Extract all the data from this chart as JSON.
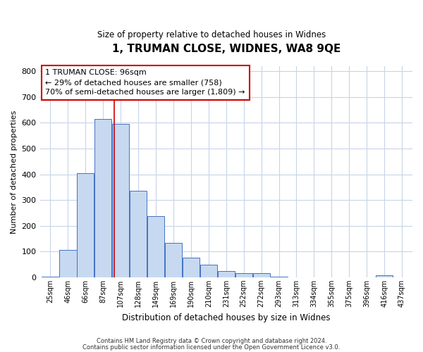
{
  "title": "1, TRUMAN CLOSE, WIDNES, WA8 9QE",
  "subtitle": "Size of property relative to detached houses in Widnes",
  "xlabel": "Distribution of detached houses by size in Widnes",
  "ylabel": "Number of detached properties",
  "bar_labels": [
    "25sqm",
    "46sqm",
    "66sqm",
    "87sqm",
    "107sqm",
    "128sqm",
    "149sqm",
    "169sqm",
    "190sqm",
    "210sqm",
    "231sqm",
    "252sqm",
    "272sqm",
    "293sqm",
    "313sqm",
    "334sqm",
    "355sqm",
    "375sqm",
    "396sqm",
    "416sqm",
    "437sqm"
  ],
  "bar_values": [
    2,
    105,
    405,
    615,
    595,
    335,
    238,
    135,
    77,
    50,
    25,
    15,
    15,
    2,
    0,
    0,
    0,
    0,
    0,
    8,
    0
  ],
  "bar_color": "#c6d9f0",
  "bar_edge_color": "#4472c4",
  "vline_color": "#cc0000",
  "vline_pos": 3.65,
  "ylim": [
    0,
    820
  ],
  "yticks": [
    0,
    100,
    200,
    300,
    400,
    500,
    600,
    700,
    800
  ],
  "annotation_title": "1 TRUMAN CLOSE: 96sqm",
  "annotation_line1": "← 29% of detached houses are smaller (758)",
  "annotation_line2": "70% of semi-detached houses are larger (1,809) →",
  "annotation_box_color": "#ffffff",
  "annotation_box_edge": "#cc0000",
  "footer1": "Contains HM Land Registry data © Crown copyright and database right 2024.",
  "footer2": "Contains public sector information licensed under the Open Government Licence v3.0.",
  "background_color": "#ffffff",
  "grid_color": "#c8d4e8"
}
